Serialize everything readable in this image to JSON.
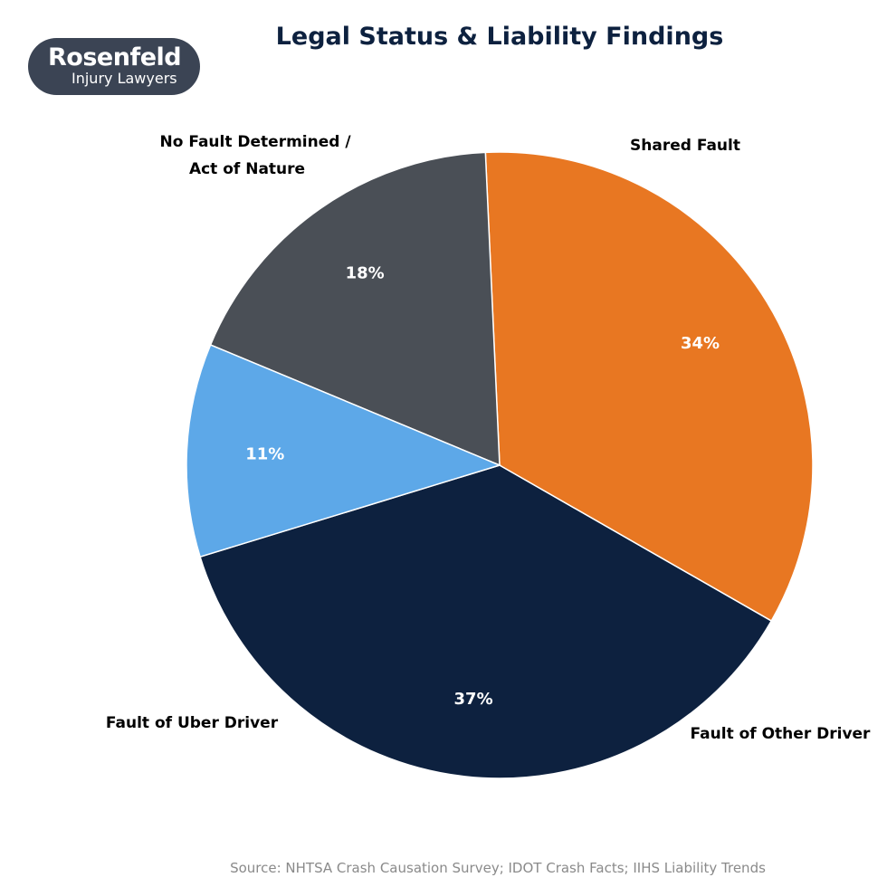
{
  "logo": {
    "brand": "Rosenfeld",
    "sub": "Injury Lawyers"
  },
  "chart_data": {
    "type": "pie",
    "title": "Legal Status & Liability Findings",
    "source": "Source: NHTSA Crash Causation Survey; IDOT Crash Facts; IIHS Liability Trends",
    "start_angle_deg": 163,
    "direction": "counterclockwise",
    "slices": [
      {
        "label": "Fault of Uber Driver",
        "value": 37,
        "display": "37%",
        "color": "#0d213f"
      },
      {
        "label": "Fault of Other Driver",
        "value": 34,
        "display": "34%",
        "color": "#e87722"
      },
      {
        "label": "Shared Fault",
        "value": 18,
        "display": "18%",
        "color": "#4a4f56"
      },
      {
        "label_lines": [
          "No Fault Determined /",
          "Act of Nature"
        ],
        "value": 11,
        "display": "11%",
        "color": "#5da8e8"
      }
    ]
  }
}
